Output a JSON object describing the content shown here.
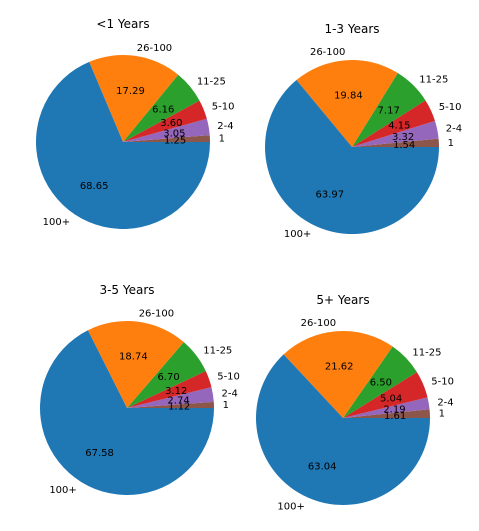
{
  "chart_data": [
    {
      "type": "pie",
      "title": "<1 Years",
      "categories": [
        "1",
        "2-4",
        "5-10",
        "11-25",
        "26-100",
        "100+"
      ],
      "values": [
        1.25,
        3.05,
        3.6,
        6.16,
        17.29,
        68.65
      ],
      "value_labels": [
        "1.25",
        "3.05",
        "3.60",
        "6.16",
        "17.29",
        "68.65"
      ],
      "start_angle_deg": 0,
      "direction": "counterclockwise"
    },
    {
      "type": "pie",
      "title": "1-3 Years",
      "categories": [
        "1",
        "2-4",
        "5-10",
        "11-25",
        "26-100",
        "100+"
      ],
      "values": [
        1.54,
        3.32,
        4.15,
        7.17,
        19.84,
        63.97
      ],
      "value_labels": [
        "1.54",
        "3.32",
        "4.15",
        "7.17",
        "19.84",
        "63.97"
      ],
      "start_angle_deg": 0,
      "direction": "counterclockwise"
    },
    {
      "type": "pie",
      "title": "3-5 Years",
      "categories": [
        "1",
        "2-4",
        "5-10",
        "11-25",
        "26-100",
        "100+"
      ],
      "values": [
        1.12,
        2.74,
        3.12,
        6.7,
        18.74,
        67.58
      ],
      "value_labels": [
        "1.12",
        "2.74",
        "3.12",
        "6.70",
        "18.74",
        "67.58"
      ],
      "start_angle_deg": 0,
      "direction": "counterclockwise"
    },
    {
      "type": "pie",
      "title": "5+ Years",
      "categories": [
        "1",
        "2-4",
        "5-10",
        "11-25",
        "26-100",
        "100+"
      ],
      "values": [
        1.61,
        2.19,
        5.04,
        6.5,
        21.62,
        63.04
      ],
      "value_labels": [
        "1.61",
        "2.19",
        "5.04",
        "6.50",
        "21.62",
        "63.04"
      ],
      "start_angle_deg": 0,
      "direction": "counterclockwise"
    }
  ],
  "colors": {
    "1": "#8c564b",
    "2-4": "#9467bd",
    "5-10": "#d62728",
    "11-25": "#2ca02c",
    "26-100": "#ff7f0e",
    "100+": "#1f77b4"
  }
}
